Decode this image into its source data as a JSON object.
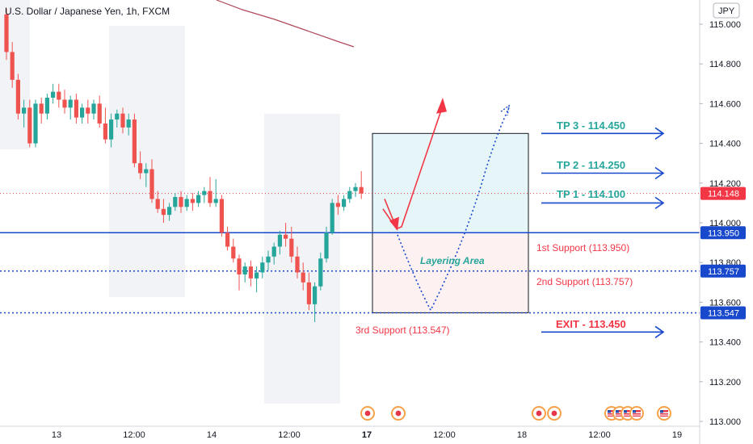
{
  "header": {
    "title": "U.S. Dollar / Japanese Yen, 1h, FXCM",
    "currency": "JPY"
  },
  "colors": {
    "up": "#26a69a",
    "down": "#ef5350",
    "blue": "#1848cc",
    "red": "#f23645",
    "ma": "#b04a5a",
    "tp_zone": "#e6f6f8",
    "risk_zone": "#fdf1f1",
    "session": "#f2f3f6"
  },
  "chart_data": {
    "type": "candlestick",
    "title": "U.S. Dollar / Japanese Yen, 1h, FXCM",
    "ylim": [
      113.0,
      115.1
    ],
    "y_ticks": [
      "115.000",
      "114.800",
      "114.600",
      "114.400",
      "114.200",
      "114.000",
      "113.800",
      "113.600",
      "113.400",
      "113.200",
      "113.000"
    ],
    "x_ticks": [
      "13",
      "12:00",
      "14",
      "12:00",
      "17",
      "12:00",
      "18",
      "12:00",
      "19"
    ],
    "candles": [
      [
        115.05,
        115.08,
        114.82,
        114.86
      ],
      [
        114.86,
        114.91,
        114.68,
        114.72
      ],
      [
        114.72,
        114.75,
        114.52,
        114.55
      ],
      [
        114.55,
        114.62,
        114.48,
        114.58
      ],
      [
        114.58,
        114.62,
        114.38,
        114.4
      ],
      [
        114.4,
        114.62,
        114.38,
        114.6
      ],
      [
        114.6,
        114.63,
        114.5,
        114.55
      ],
      [
        114.55,
        114.65,
        114.52,
        114.63
      ],
      [
        114.63,
        114.7,
        114.6,
        114.66
      ],
      [
        114.66,
        114.7,
        114.58,
        114.62
      ],
      [
        114.62,
        114.67,
        114.55,
        114.58
      ],
      [
        114.58,
        114.64,
        114.52,
        114.62
      ],
      [
        114.62,
        114.65,
        114.5,
        114.53
      ],
      [
        114.53,
        114.6,
        114.5,
        114.58
      ],
      [
        114.58,
        114.62,
        114.5,
        114.55
      ],
      [
        114.55,
        114.62,
        114.52,
        114.6
      ],
      [
        114.6,
        114.64,
        114.48,
        114.5
      ],
      [
        114.5,
        114.58,
        114.4,
        114.42
      ],
      [
        114.42,
        114.55,
        114.38,
        114.52
      ],
      [
        114.52,
        114.57,
        114.48,
        114.55
      ],
      [
        114.55,
        114.58,
        114.45,
        114.48
      ],
      [
        114.48,
        114.55,
        114.44,
        114.52
      ],
      [
        114.52,
        114.55,
        114.28,
        114.3
      ],
      [
        114.3,
        114.36,
        114.22,
        114.25
      ],
      [
        114.25,
        114.3,
        114.18,
        114.27
      ],
      [
        114.27,
        114.32,
        114.1,
        114.12
      ],
      [
        114.12,
        114.16,
        114.05,
        114.07
      ],
      [
        114.07,
        114.12,
        114.0,
        114.04
      ],
      [
        114.04,
        114.1,
        114.01,
        114.08
      ],
      [
        114.08,
        114.15,
        114.06,
        114.13
      ],
      [
        114.13,
        114.16,
        114.05,
        114.08
      ],
      [
        114.08,
        114.14,
        114.06,
        114.12
      ],
      [
        114.12,
        114.15,
        114.06,
        114.1
      ],
      [
        114.1,
        114.16,
        114.08,
        114.14
      ],
      [
        114.14,
        114.18,
        114.1,
        114.16
      ],
      [
        114.16,
        114.23,
        114.08,
        114.1
      ],
      [
        114.1,
        114.22,
        114.08,
        114.12
      ],
      [
        114.12,
        114.14,
        113.93,
        113.95
      ],
      [
        113.95,
        113.98,
        113.86,
        113.88
      ],
      [
        113.88,
        113.92,
        113.8,
        113.82
      ],
      [
        113.82,
        113.84,
        113.66,
        113.74
      ],
      [
        113.74,
        113.8,
        113.7,
        113.78
      ],
      [
        113.78,
        113.81,
        113.68,
        113.72
      ],
      [
        113.72,
        113.78,
        113.65,
        113.75
      ],
      [
        113.75,
        113.83,
        113.72,
        113.8
      ],
      [
        113.8,
        113.86,
        113.76,
        113.83
      ],
      [
        113.83,
        113.9,
        113.79,
        113.88
      ],
      [
        113.88,
        113.96,
        113.84,
        113.94
      ],
      [
        113.94,
        114.0,
        113.88,
        113.92
      ],
      [
        113.92,
        113.98,
        113.8,
        113.83
      ],
      [
        113.83,
        113.88,
        113.72,
        113.75
      ],
      [
        113.75,
        113.8,
        113.66,
        113.7
      ],
      [
        113.7,
        113.75,
        113.56,
        113.59
      ],
      [
        113.59,
        113.7,
        113.5,
        113.68
      ],
      [
        113.68,
        113.85,
        113.66,
        113.82
      ],
      [
        113.82,
        113.98,
        113.8,
        113.95
      ],
      [
        113.95,
        114.12,
        113.94,
        114.1
      ],
      [
        114.1,
        114.14,
        114.04,
        114.08
      ],
      [
        114.08,
        114.14,
        114.06,
        114.12
      ],
      [
        114.12,
        114.18,
        114.1,
        114.16
      ],
      [
        114.16,
        114.2,
        114.13,
        114.18
      ],
      [
        114.18,
        114.26,
        114.12,
        114.148
      ]
    ],
    "moving_average": [
      [
        0,
        115.28
      ],
      [
        12,
        115.14
      ],
      [
        25,
        115.02
      ],
      [
        34,
        114.93
      ]
    ],
    "levels": [
      {
        "name": "current",
        "price": 114.148,
        "style": "dotted",
        "label": "114.148"
      },
      {
        "name": "1st-support",
        "price": 113.95,
        "style": "solid",
        "label": "113.950"
      },
      {
        "name": "2nd-support",
        "price": 113.757,
        "style": "dotted",
        "label": "113.757"
      },
      {
        "name": "3rd-support",
        "price": 113.547,
        "style": "dotted",
        "label": "113.547"
      }
    ],
    "tp_zone": [
      113.95,
      114.45
    ],
    "risk_zone": [
      113.547,
      113.95
    ],
    "red_path": [
      [
        113.95,
        114.02,
        114.6
      ]
    ],
    "annotations": {
      "tp3": "TP 3 - 114.450",
      "tp2": "TP 2 - 114.250",
      "tp1": "TP 1 - 114.100",
      "exit": "EXIT - 113.450",
      "s1": "1st Support (113.950)",
      "s2": "2nd Support (113.757)",
      "s3": "3rd Support (113.547)",
      "layering": "Layering Area"
    },
    "tp_prices": {
      "tp3": 114.45,
      "tp2": 114.25,
      "tp1": 114.1,
      "exit": 113.45
    },
    "events": [
      {
        "flag": "jp"
      },
      {
        "flag": "jp"
      },
      {
        "flag": "jp"
      },
      {
        "flag": "jp"
      },
      {
        "flag": "us"
      },
      {
        "flag": "us"
      },
      {
        "flag": "us"
      },
      {
        "flag": "us"
      },
      {
        "flag": "us"
      }
    ]
  }
}
